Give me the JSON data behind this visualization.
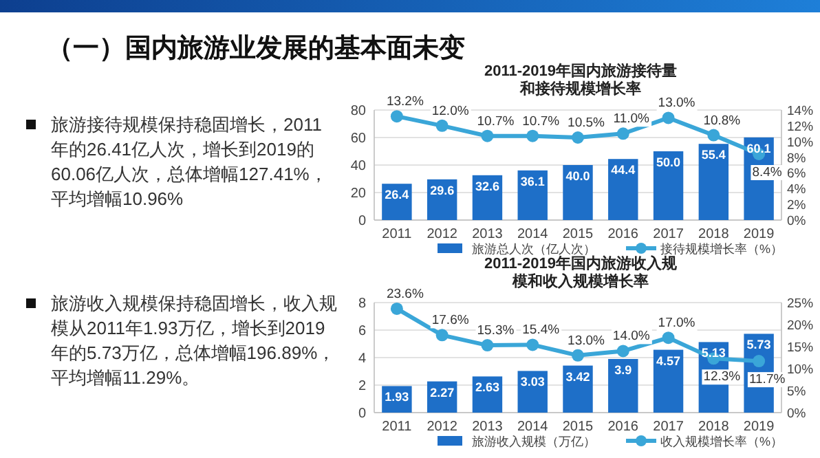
{
  "chart_data": [
    {
      "type": "other",
      "title": "（一）国内旅游业发展的基本面未变",
      "annotations": [
        "旅游接待规模保持稳固增长，2011年的26.41亿人次，增长到2019的60.06亿人次，总体增幅127.41%，平均增幅10.96%",
        "旅游收入规模保持稳固增长，收入规模从2011年1.93万亿，增长到2019年的5.73万亿，总体增幅196.89%，平均增幅11.29%。"
      ]
    },
    {
      "type": "bar",
      "title": "2011-2019年国内旅游接待量和接待规模增长率",
      "categories": [
        "2011",
        "2012",
        "2013",
        "2014",
        "2015",
        "2016",
        "2017",
        "2018",
        "2019"
      ],
      "series": [
        {
          "name": "旅游总人次（亿人次）",
          "color": "#1e6fc8",
          "values": [
            26.4,
            29.6,
            32.6,
            36.1,
            40.0,
            44.4,
            50.0,
            55.4,
            60.1
          ],
          "value_labels": [
            "26.4",
            "29.6",
            "32.6",
            "36.1",
            "40.0",
            "44.4",
            "50.0",
            "55.4",
            "60.1"
          ]
        },
        {
          "name": "接待规模增长率（%）",
          "type": "line",
          "axis": "y2",
          "color": "#3aa6d8",
          "values": [
            13.2,
            12.0,
            10.7,
            10.7,
            10.5,
            11.0,
            13.0,
            10.8,
            8.4
          ],
          "value_labels": [
            "13.2%",
            "12.0%",
            "10.7%",
            "10.7%",
            "10.5%",
            "11.0%",
            "13.0%",
            "10.8%",
            "8.4%"
          ]
        }
      ],
      "ylim": [
        0,
        80
      ],
      "yticks": [
        0,
        20,
        40,
        60,
        80
      ],
      "y2lim": [
        0,
        14
      ],
      "y2ticks": [
        {
          "value": 0,
          "label": "0%"
        },
        {
          "value": 2,
          "label": "2%"
        },
        {
          "value": 4,
          "label": "4%"
        },
        {
          "value": 6,
          "label": "6%"
        },
        {
          "value": 8,
          "label": "8%"
        },
        {
          "value": 10,
          "label": "10%"
        },
        {
          "value": 12,
          "label": "12%"
        },
        {
          "value": 14,
          "label": "14%"
        }
      ],
      "grid": "y",
      "legend": "bottom",
      "marker": "circle"
    },
    {
      "type": "bar",
      "title": "2011-2019年国内旅游收入规模和收入规模增长率",
      "categories": [
        "2011",
        "2012",
        "2013",
        "2014",
        "2015",
        "2016",
        "2017",
        "2018",
        "2019"
      ],
      "series": [
        {
          "name": "旅游收入规模（万亿）",
          "color": "#1e6fc8",
          "values": [
            1.93,
            2.27,
            2.63,
            3.03,
            3.42,
            3.9,
            4.57,
            5.13,
            5.73
          ],
          "value_labels": [
            "1.93",
            "2.27",
            "2.63",
            "3.03",
            "3.42",
            "3.9",
            "4.57",
            "5.13",
            "5.73"
          ]
        },
        {
          "name": "收入规模增长率（%）",
          "type": "line",
          "axis": "y2",
          "color": "#3aa6d8",
          "values": [
            23.6,
            17.6,
            15.3,
            15.4,
            13.0,
            14.0,
            17.0,
            12.3,
            11.7
          ],
          "value_labels": [
            "23.6%",
            "17.6%",
            "15.3%",
            "15.4%",
            "13.0%",
            "14.0%",
            "17.0%",
            "12.3%",
            "11.7%"
          ]
        }
      ],
      "ylim": [
        0,
        8
      ],
      "yticks": [
        0,
        2,
        4,
        6,
        8
      ],
      "y2lim": [
        0,
        25
      ],
      "y2ticks": [
        {
          "value": 0,
          "label": "0%"
        },
        {
          "value": 5,
          "label": "5%"
        },
        {
          "value": 10,
          "label": "10%"
        },
        {
          "value": 15,
          "label": "15%"
        },
        {
          "value": 20,
          "label": "20%"
        },
        {
          "value": 25,
          "label": "25%"
        }
      ],
      "grid": "y",
      "legend": "bottom",
      "marker": "circle"
    }
  ]
}
